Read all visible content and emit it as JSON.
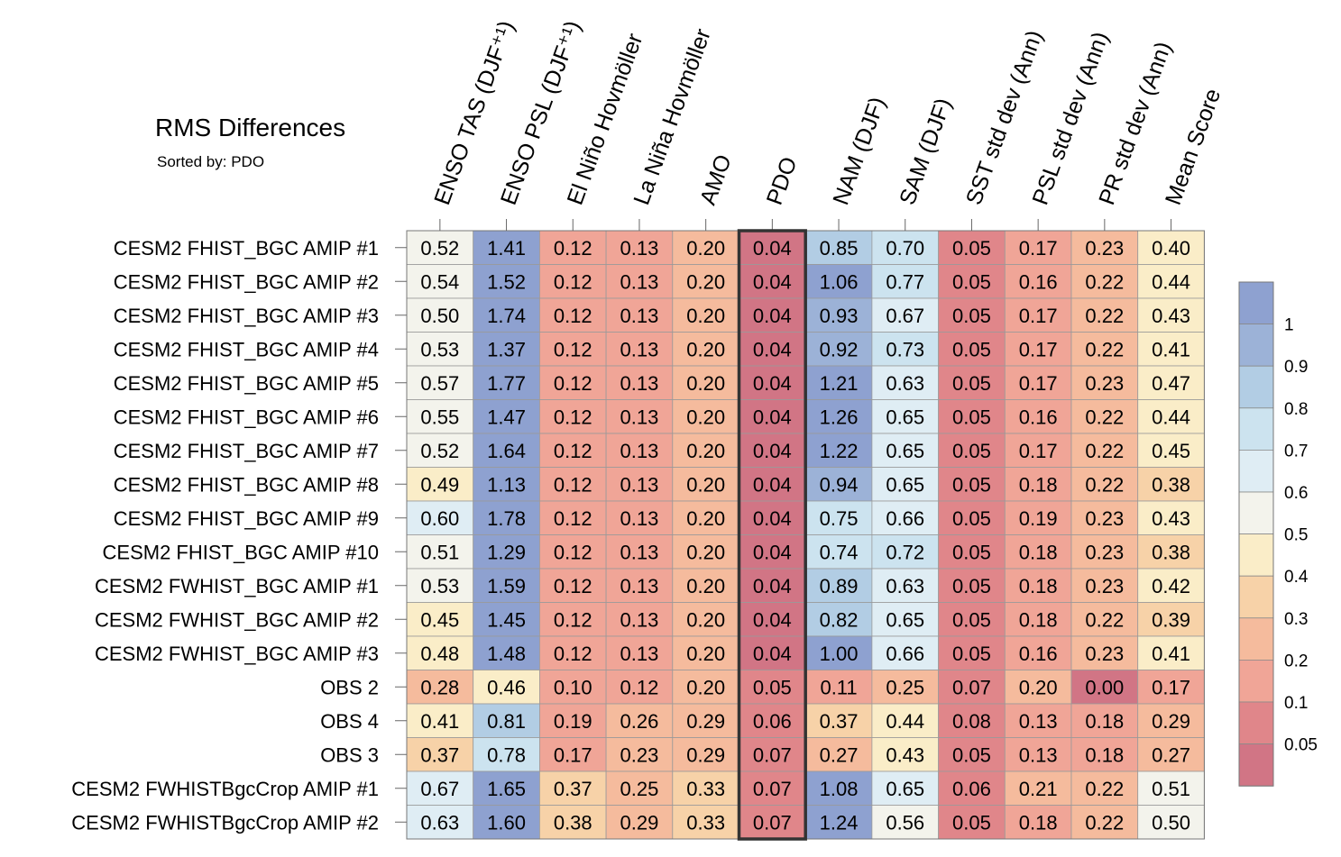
{
  "chart_data": {
    "type": "heatmap",
    "title": "RMS Differences",
    "subtitle": "Sorted by: PDO",
    "highlight_column": "PDO",
    "columns": [
      "ENSO TAS (DJF⁺¹)",
      "ENSO PSL (DJF⁺¹)",
      "El Niño Hovmöller",
      "La Niña Hovmöller",
      "AMO",
      "PDO",
      "NAM (DJF)",
      "SAM (DJF)",
      "SST std dev (Ann)",
      "PSL std dev (Ann)",
      "PR std dev (Ann)",
      "Mean Score"
    ],
    "rows": [
      {
        "label": "CESM2 FHIST_BGC AMIP #1",
        "values": [
          "0.52",
          "1.41",
          "0.12",
          "0.13",
          "0.20",
          "0.04",
          "0.85",
          "0.70",
          "0.05",
          "0.17",
          "0.23",
          "0.40"
        ]
      },
      {
        "label": "CESM2 FHIST_BGC AMIP #2",
        "values": [
          "0.54",
          "1.52",
          "0.12",
          "0.13",
          "0.20",
          "0.04",
          "1.06",
          "0.77",
          "0.05",
          "0.16",
          "0.22",
          "0.44"
        ]
      },
      {
        "label": "CESM2 FHIST_BGC AMIP #3",
        "values": [
          "0.50",
          "1.74",
          "0.12",
          "0.13",
          "0.20",
          "0.04",
          "0.93",
          "0.67",
          "0.05",
          "0.17",
          "0.22",
          "0.43"
        ]
      },
      {
        "label": "CESM2 FHIST_BGC AMIP #4",
        "values": [
          "0.53",
          "1.37",
          "0.12",
          "0.13",
          "0.20",
          "0.04",
          "0.92",
          "0.73",
          "0.05",
          "0.17",
          "0.22",
          "0.41"
        ]
      },
      {
        "label": "CESM2 FHIST_BGC AMIP #5",
        "values": [
          "0.57",
          "1.77",
          "0.12",
          "0.13",
          "0.20",
          "0.04",
          "1.21",
          "0.63",
          "0.05",
          "0.17",
          "0.23",
          "0.47"
        ]
      },
      {
        "label": "CESM2 FHIST_BGC AMIP #6",
        "values": [
          "0.55",
          "1.47",
          "0.12",
          "0.13",
          "0.20",
          "0.04",
          "1.26",
          "0.65",
          "0.05",
          "0.16",
          "0.22",
          "0.44"
        ]
      },
      {
        "label": "CESM2 FHIST_BGC AMIP #7",
        "values": [
          "0.52",
          "1.64",
          "0.12",
          "0.13",
          "0.20",
          "0.04",
          "1.22",
          "0.65",
          "0.05",
          "0.17",
          "0.22",
          "0.45"
        ]
      },
      {
        "label": "CESM2 FHIST_BGC AMIP #8",
        "values": [
          "0.49",
          "1.13",
          "0.12",
          "0.13",
          "0.20",
          "0.04",
          "0.94",
          "0.65",
          "0.05",
          "0.18",
          "0.22",
          "0.38"
        ]
      },
      {
        "label": "CESM2 FHIST_BGC AMIP #9",
        "values": [
          "0.60",
          "1.78",
          "0.12",
          "0.13",
          "0.20",
          "0.04",
          "0.75",
          "0.66",
          "0.05",
          "0.19",
          "0.23",
          "0.43"
        ]
      },
      {
        "label": "CESM2 FHIST_BGC AMIP #10",
        "values": [
          "0.51",
          "1.29",
          "0.12",
          "0.13",
          "0.20",
          "0.04",
          "0.74",
          "0.72",
          "0.05",
          "0.18",
          "0.23",
          "0.38"
        ]
      },
      {
        "label": "CESM2 FWHIST_BGC AMIP #1",
        "values": [
          "0.53",
          "1.59",
          "0.12",
          "0.13",
          "0.20",
          "0.04",
          "0.89",
          "0.63",
          "0.05",
          "0.18",
          "0.23",
          "0.42"
        ]
      },
      {
        "label": "CESM2 FWHIST_BGC AMIP #2",
        "values": [
          "0.45",
          "1.45",
          "0.12",
          "0.13",
          "0.20",
          "0.04",
          "0.82",
          "0.65",
          "0.05",
          "0.18",
          "0.22",
          "0.39"
        ]
      },
      {
        "label": "CESM2 FWHIST_BGC AMIP #3",
        "values": [
          "0.48",
          "1.48",
          "0.12",
          "0.13",
          "0.20",
          "0.04",
          "1.00",
          "0.66",
          "0.05",
          "0.16",
          "0.23",
          "0.41"
        ]
      },
      {
        "label": "OBS 2",
        "values": [
          "0.28",
          "0.46",
          "0.10",
          "0.12",
          "0.20",
          "0.05",
          "0.11",
          "0.25",
          "0.07",
          "0.20",
          "0.00",
          "0.17"
        ]
      },
      {
        "label": "OBS 4",
        "values": [
          "0.41",
          "0.81",
          "0.19",
          "0.26",
          "0.29",
          "0.06",
          "0.37",
          "0.44",
          "0.08",
          "0.13",
          "0.18",
          "0.29"
        ]
      },
      {
        "label": "OBS 3",
        "values": [
          "0.37",
          "0.78",
          "0.17",
          "0.23",
          "0.29",
          "0.07",
          "0.27",
          "0.43",
          "0.05",
          "0.13",
          "0.18",
          "0.27"
        ]
      },
      {
        "label": "CESM2 FWHISTBgcCrop AMIP #1",
        "values": [
          "0.67",
          "1.65",
          "0.37",
          "0.25",
          "0.33",
          "0.07",
          "1.08",
          "0.65",
          "0.06",
          "0.21",
          "0.22",
          "0.51"
        ]
      },
      {
        "label": "CESM2 FWHISTBgcCrop AMIP #2",
        "values": [
          "0.63",
          "1.60",
          "0.38",
          "0.29",
          "0.33",
          "0.07",
          "1.24",
          "0.56",
          "0.05",
          "0.18",
          "0.22",
          "0.50"
        ]
      }
    ],
    "colorbar": {
      "labels": [
        "1",
        "0.9",
        "0.8",
        "0.7",
        "0.6",
        "0.5",
        "0.4",
        "0.3",
        "0.2",
        "0.1",
        "0.05"
      ],
      "thresholds": [
        0.05,
        0.1,
        0.2,
        0.3,
        0.4,
        0.5,
        0.6,
        0.7,
        0.8,
        0.9,
        1.0
      ],
      "colors_low_to_high": [
        "#d17585",
        "#e0868a",
        "#f0a597",
        "#f5bb9d",
        "#f7d2a8",
        "#faedc8",
        "#f3f3ec",
        "#dfedf4",
        "#cce3ef",
        "#b2cde4",
        "#9cb2d7",
        "#8ea1d0"
      ]
    }
  }
}
